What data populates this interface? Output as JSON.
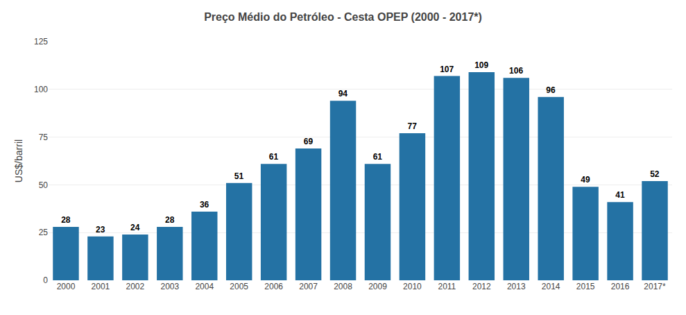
{
  "chart_data": {
    "type": "bar",
    "title": "Preço Médio do Petróleo - Cesta OPEP (2000 - 2017*)",
    "ylabel": "US$/barril",
    "categories": [
      "2000",
      "2001",
      "2002",
      "2003",
      "2004",
      "2005",
      "2006",
      "2007",
      "2008",
      "2009",
      "2010",
      "2011",
      "2012",
      "2013",
      "2014",
      "2015",
      "2016",
      "2017*"
    ],
    "values": [
      28,
      23,
      24,
      28,
      36,
      51,
      61,
      69,
      94,
      61,
      77,
      107,
      109,
      106,
      96,
      49,
      41,
      52
    ],
    "color": "#2472A4",
    "ylim": [
      0,
      125
    ],
    "yticks": [
      0,
      25,
      50,
      75,
      100,
      125
    ],
    "grid": true,
    "data_labels": true
  }
}
